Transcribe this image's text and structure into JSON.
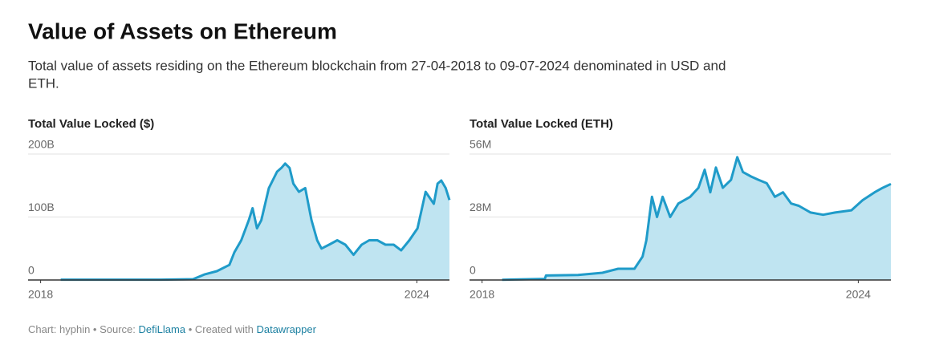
{
  "header": {
    "title": "Value of Assets on Ethereum",
    "subtitle_lines": [
      "Total value of assets residing on the Ethereum blockchain from 27-04-2018 to 09-07-2024 denominated in USD and",
      "ETH."
    ]
  },
  "chart_data": [
    {
      "type": "area",
      "title": "Total Value Locked ($)",
      "color": "#1f9bc9",
      "fill": "#bfe4f1",
      "x": [
        2018.32,
        2019.0,
        2019.92,
        2020.43,
        2020.62,
        2020.81,
        2021.01,
        2021.09,
        2021.2,
        2021.32,
        2021.38,
        2021.45,
        2021.52,
        2021.64,
        2021.77,
        2021.84,
        2021.9,
        2021.97,
        2022.03,
        2022.12,
        2022.22,
        2022.32,
        2022.41,
        2022.48,
        2022.6,
        2022.73,
        2022.86,
        2022.99,
        2023.12,
        2023.24,
        2023.37,
        2023.5,
        2023.63,
        2023.75,
        2023.88,
        2024.01,
        2024.14,
        2024.27,
        2024.33,
        2024.39,
        2024.46,
        2024.52
      ],
      "values": [
        0.5,
        0.5,
        0.5,
        1.3,
        9,
        14,
        24,
        44,
        63,
        95,
        114,
        82,
        95,
        146,
        172,
        178,
        185,
        178,
        153,
        140,
        146,
        95,
        63,
        50,
        56,
        63,
        56,
        40,
        56,
        63,
        63,
        56,
        56,
        47,
        63,
        82,
        140,
        121,
        153,
        158,
        146,
        127
      ],
      "xlim": [
        2017.8,
        2024.52
      ],
      "xticks": [
        2018,
        2024
      ],
      "ylim": [
        0,
        200
      ],
      "yticks": [
        0,
        {
          "value": 100,
          "label": "100B"
        },
        {
          "value": 200,
          "label": "200B"
        }
      ]
    },
    {
      "type": "area",
      "title": "Total Value Locked (ETH)",
      "color": "#1f9bc9",
      "fill": "#bfe4f1",
      "x": [
        2018.32,
        2019.0,
        2019.02,
        2019.53,
        2019.92,
        2020.17,
        2020.43,
        2020.56,
        2020.62,
        2020.71,
        2020.79,
        2020.88,
        2021.0,
        2021.13,
        2021.32,
        2021.45,
        2021.55,
        2021.64,
        2021.73,
        2021.84,
        2021.97,
        2022.07,
        2022.16,
        2022.29,
        2022.41,
        2022.54,
        2022.67,
        2022.8,
        2022.93,
        2023.05,
        2023.24,
        2023.44,
        2023.63,
        2023.89,
        2024.07,
        2024.26,
        2024.39,
        2024.52
      ],
      "values": [
        0.1,
        0.5,
        2,
        2.2,
        3.2,
        5,
        5,
        10.4,
        17.6,
        37,
        28,
        37,
        28,
        34,
        37,
        41,
        49,
        39,
        50,
        41,
        44.5,
        54.6,
        48,
        46,
        44.5,
        43,
        37,
        39,
        34,
        33,
        30,
        29,
        30,
        31,
        35.5,
        39,
        41,
        42.7
      ],
      "xlim": [
        2017.8,
        2024.52
      ],
      "xticks": [
        2018,
        2024
      ],
      "ylim": [
        0,
        56
      ],
      "yticks": [
        0,
        {
          "value": 28,
          "label": "28M"
        },
        {
          "value": 56,
          "label": "56M"
        }
      ]
    }
  ],
  "footer": {
    "credit": "Chart: hyphin • Source:",
    "source": "DefiLlama",
    "created": "• Created with",
    "tool": "Datawrapper"
  }
}
